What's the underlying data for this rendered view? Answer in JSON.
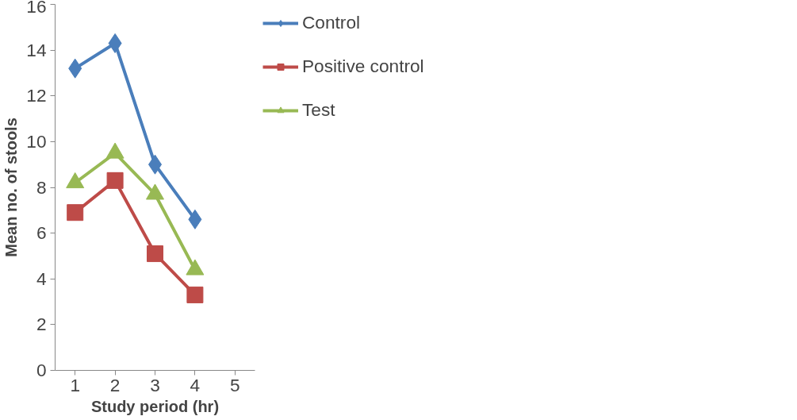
{
  "chart_data": {
    "type": "line",
    "xlabel": "Study period (hr)",
    "ylabel": "Mean no. of stools",
    "categories": [
      "1",
      "2",
      "3",
      "4",
      "5"
    ],
    "ylim": [
      0,
      16
    ],
    "yticks": [
      0,
      2,
      4,
      6,
      8,
      10,
      12,
      14,
      16
    ],
    "grid": false,
    "legend": "right",
    "series": [
      {
        "name": "Control",
        "color": "#4a7ebb",
        "marker": "diamond",
        "values": [
          13.2,
          14.3,
          9.0,
          6.6,
          null
        ]
      },
      {
        "name": "Positive control",
        "color": "#be4b48",
        "marker": "square",
        "values": [
          6.9,
          8.3,
          5.1,
          3.3,
          null
        ]
      },
      {
        "name": "Test",
        "color": "#98b954",
        "marker": "triangle",
        "values": [
          8.2,
          9.5,
          7.7,
          4.4,
          null
        ]
      }
    ]
  }
}
